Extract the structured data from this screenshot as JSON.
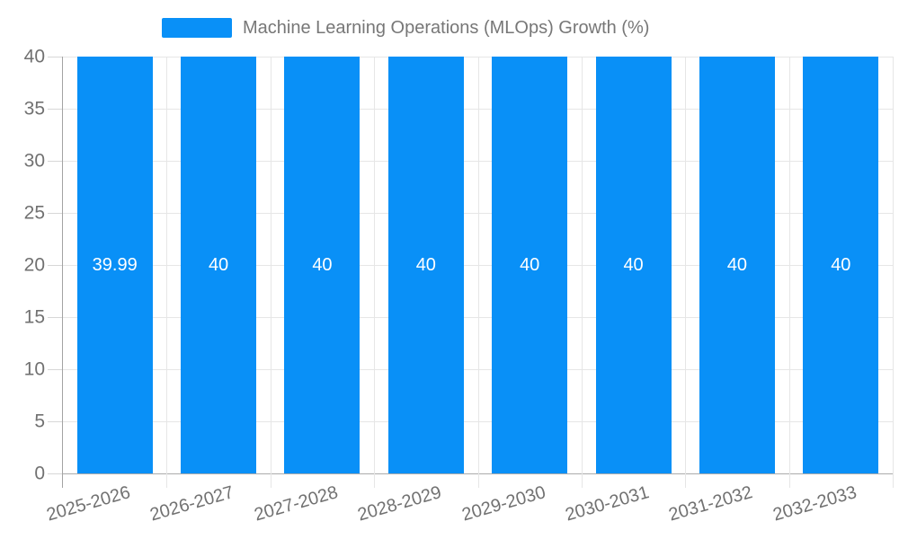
{
  "legend": {
    "label": "Machine Learning Operations (MLOps) Growth (%)"
  },
  "chart_data": {
    "type": "bar",
    "title": "",
    "categories": [
      "2025-2026",
      "2026-2027",
      "2027-2028",
      "2028-2029",
      "2029-2030",
      "2030-2031",
      "2031-2032",
      "2032-2033"
    ],
    "series": [
      {
        "name": "Machine Learning Operations (MLOps) Growth (%)",
        "values": [
          39.99,
          40,
          40,
          40,
          40,
          40,
          40,
          40
        ],
        "value_labels": [
          "39.99",
          "40",
          "40",
          "40",
          "40",
          "40",
          "40",
          "40"
        ]
      }
    ],
    "xlabel": "",
    "ylabel": "",
    "ylim": [
      0,
      40
    ],
    "yticks": [
      0,
      5,
      10,
      15,
      20,
      25,
      30,
      35,
      40
    ],
    "grid": true,
    "legend_position": "top",
    "bar_label_position": "inside-center",
    "x_label_rotation_deg": -16
  },
  "colors": {
    "bar": "#0990f7",
    "bar_label": "#ffffff",
    "grid": "#e6e6e6",
    "axis": "#ababab",
    "tick": "#d7d7d7",
    "axis_label_text": "#717171",
    "legend_text": "#777777",
    "background": "#ffffff"
  }
}
